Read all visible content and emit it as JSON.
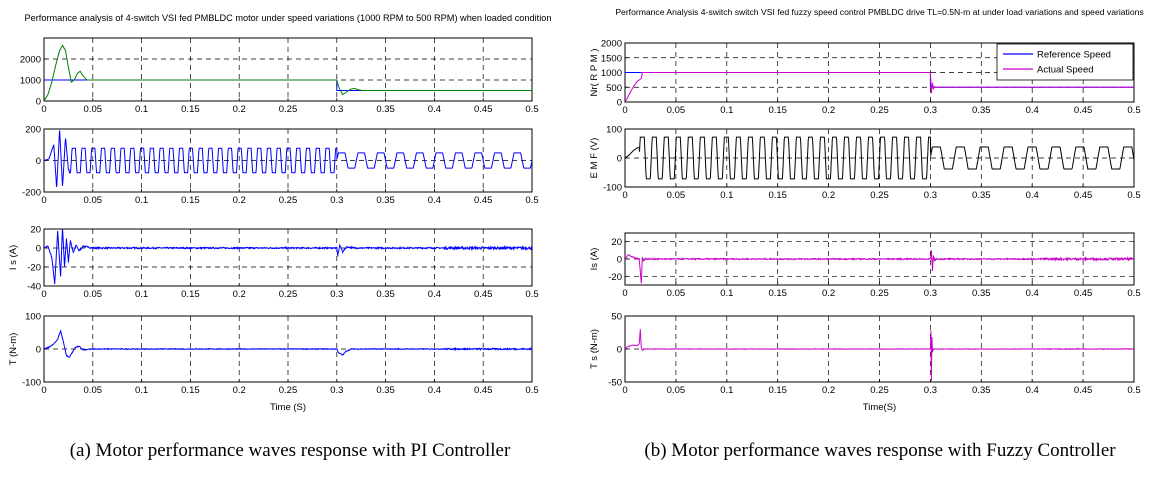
{
  "figure": {
    "caption_a": "(a) Motor performance waves response with PI Controller",
    "caption_b": "(b) Motor performance waves response with Fuzzy Controller"
  },
  "chart_data": [
    {
      "id": "pi",
      "type": "line",
      "title": "Performance analysis of 4-switch VSI fed PMBLDC motor under speed variations (1000 RPM to 500 RPM) when loaded condition",
      "xlabel": "Time (S)",
      "xlim": [
        0,
        0.5
      ],
      "xticks": [
        0,
        0.05,
        0.1,
        0.15,
        0.2,
        0.25,
        0.3,
        0.35,
        0.4,
        0.45,
        0.5
      ],
      "xtick_labels": [
        "0",
        "0.05",
        "0.1",
        "0.15",
        "0.2",
        "0.25",
        "0.3",
        "0.35",
        "0.4",
        "0.45",
        "0.5"
      ],
      "grid": true,
      "panels": [
        {
          "ylabel": "",
          "ylim": [
            0,
            3000
          ],
          "yticks": [
            0,
            1000,
            2000
          ],
          "series": [
            {
              "color": "#0000ff",
              "x": [
                0,
                0.3,
                0.3,
                0.5
              ],
              "y": [
                1000,
                1000,
                500,
                500
              ]
            },
            {
              "color": "#008000",
              "x": [
                0,
                0.004,
                0.008,
                0.012,
                0.016,
                0.019,
                0.022,
                0.025,
                0.028,
                0.031,
                0.034,
                0.037,
                0.04,
                0.044,
                0.048,
                0.3,
                0.302,
                0.306,
                0.31,
                0.314,
                0.318,
                0.322,
                0.326,
                0.33,
                0.5
              ],
              "y": [
                0,
                300,
                900,
                1700,
                2400,
                2650,
                2400,
                1600,
                900,
                1000,
                1300,
                1420,
                1200,
                1000,
                1000,
                1000,
                650,
                300,
                430,
                560,
                600,
                540,
                500,
                500,
                500
              ]
            }
          ]
        },
        {
          "ylabel": "",
          "ylim": [
            -200,
            200
          ],
          "yticks": [
            -200,
            0,
            200
          ],
          "series": [
            {
              "color": "#0000ff",
              "kind": "trapezoid",
              "segments": [
                {
                  "t0": 0.008,
                  "t1": 0.3,
                  "period": 0.01,
                  "amp": 78
                },
                {
                  "t0": 0.3,
                  "t1": 0.5,
                  "period": 0.02,
                  "amp": 48
                }
              ],
              "spikes": [
                [
                  0.0,
                  0
                ],
                [
                  0.005,
                  10
                ],
                [
                  0.01,
                  100
                ],
                [
                  0.013,
                  -180
                ],
                [
                  0.016,
                  200
                ],
                [
                  0.019,
                  -170
                ],
                [
                  0.022,
                  150
                ],
                [
                  0.025,
                  -60
                ]
              ]
            }
          ]
        },
        {
          "ylabel": "I s (A)",
          "ylim": [
            -40,
            20
          ],
          "yticks": [
            -40,
            -20,
            0,
            20
          ],
          "series": [
            {
              "color": "#0000ff",
              "x": [
                0,
                0.004,
                0.008,
                0.011,
                0.014,
                0.017,
                0.019,
                0.021,
                0.023,
                0.025,
                0.027,
                0.03,
                0.033,
                0.036,
                0.04,
                0.045,
                0.05,
                0.3,
                0.301,
                0.303,
                0.306,
                0.31,
                0.32,
                0.5
              ],
              "y": [
                0,
                2,
                -10,
                -38,
                18,
                -30,
                22,
                -20,
                10,
                -15,
                8,
                -5,
                3,
                -3,
                2,
                1,
                0,
                0,
                -8,
                3,
                -4,
                1,
                0,
                0
              ],
              "noise": 1.5
            }
          ]
        },
        {
          "ylabel": "T (N-m)",
          "ylim": [
            -100,
            100
          ],
          "yticks": [
            -100,
            0,
            100
          ],
          "series": [
            {
              "color": "#0000ff",
              "x": [
                0,
                0.005,
                0.01,
                0.014,
                0.017,
                0.02,
                0.023,
                0.026,
                0.029,
                0.032,
                0.036,
                0.04,
                0.05,
                0.3,
                0.302,
                0.306,
                0.31,
                0.315,
                0.5
              ],
              "y": [
                0,
                5,
                15,
                30,
                55,
                20,
                -20,
                -25,
                -10,
                5,
                8,
                -3,
                0,
                0,
                -12,
                -18,
                -6,
                0,
                0
              ],
              "noise": 2.5
            }
          ]
        }
      ]
    },
    {
      "id": "fuzzy",
      "type": "line",
      "title": "Performance Analysis 4-switch switch VSI fed fuzzy speed control PMBLDC drive TL=0.5N-m at under load variations and speed variations",
      "xlabel": "Time(S)",
      "xlim": [
        0,
        0.5
      ],
      "xticks": [
        0,
        0.05,
        0.1,
        0.15,
        0.2,
        0.25,
        0.3,
        0.35,
        0.4,
        0.45,
        0.5
      ],
      "xtick_labels": [
        "0",
        "0.05",
        "0.1",
        "0.15",
        "0.2",
        "0.25",
        "0.3",
        "0.35",
        "0.4",
        "0.45",
        "0.5"
      ],
      "grid": true,
      "legend": {
        "placement": "top-right",
        "entries": [
          {
            "name": "Reference Speed",
            "color": "#0000ff"
          },
          {
            "name": "Actual Speed",
            "color": "#cc00cc"
          }
        ]
      },
      "panels": [
        {
          "ylabel": "Nr( R P M )",
          "ylim": [
            0,
            2000
          ],
          "yticks": [
            0,
            500,
            1000,
            1500,
            2000
          ],
          "series": [
            {
              "name": "Reference Speed",
              "color": "#0000ff",
              "x": [
                0,
                0.3,
                0.3,
                0.5
              ],
              "y": [
                1000,
                1000,
                500,
                500
              ]
            },
            {
              "name": "Actual Speed",
              "color": "#cc00cc",
              "x": [
                0,
                0.004,
                0.008,
                0.012,
                0.016,
                0.017,
                0.3,
                0.301,
                0.302,
                0.303,
                0.304,
                0.305,
                0.5
              ],
              "y": [
                0,
                250,
                500,
                700,
                800,
                1000,
                1000,
                300,
                650,
                450,
                520,
                500,
                500
              ]
            }
          ]
        },
        {
          "ylabel": "E M F (V)",
          "ylim": [
            -100,
            100
          ],
          "yticks": [
            -100,
            0,
            100
          ],
          "series": [
            {
              "color": "#000000",
              "kind": "trapezoid",
              "segments": [
                {
                  "t0": 0.014,
                  "t1": 0.3,
                  "period": 0.0118,
                  "amp": 72
                },
                {
                  "t0": 0.3,
                  "t1": 0.5,
                  "period": 0.0235,
                  "amp": 38
                }
              ],
              "spikes": [
                [
                  0.0,
                  0
                ],
                [
                  0.004,
                  10
                ],
                [
                  0.008,
                  25
                ],
                [
                  0.012,
                  35
                ],
                [
                  0.014,
                  35
                ]
              ]
            }
          ]
        },
        {
          "ylabel": "Is (A)",
          "ylim": [
            -30,
            30
          ],
          "yticks": [
            -20,
            0,
            20
          ],
          "series": [
            {
              "color": "#cc00cc",
              "x": [
                0,
                0.003,
                0.006,
                0.01,
                0.014,
                0.016,
                0.017,
                0.018,
                0.02,
                0.3,
                0.301,
                0.302,
                0.303,
                0.304,
                0.306,
                0.5
              ],
              "y": [
                0,
                5,
                3,
                1,
                0,
                -28,
                2,
                -2,
                0,
                0,
                10,
                -14,
                4,
                -2,
                0,
                0
              ],
              "noise": 1.4
            }
          ]
        },
        {
          "ylabel": "T s (N-m)",
          "ylim": [
            -50,
            50
          ],
          "yticks": [
            -50,
            0,
            50
          ],
          "series": [
            {
              "color": "#cc00cc",
              "x": [
                0,
                0.003,
                0.008,
                0.012,
                0.014,
                0.015,
                0.016,
                0.017,
                0.019,
                0.3,
                0.3005,
                0.301,
                0.3015,
                0.302,
                0.303,
                0.5
              ],
              "y": [
                0,
                4,
                6,
                5,
                8,
                30,
                2,
                -2,
                0,
                0,
                28,
                -48,
                18,
                -5,
                0,
                0
              ],
              "noise": 0.6
            }
          ]
        }
      ]
    }
  ]
}
